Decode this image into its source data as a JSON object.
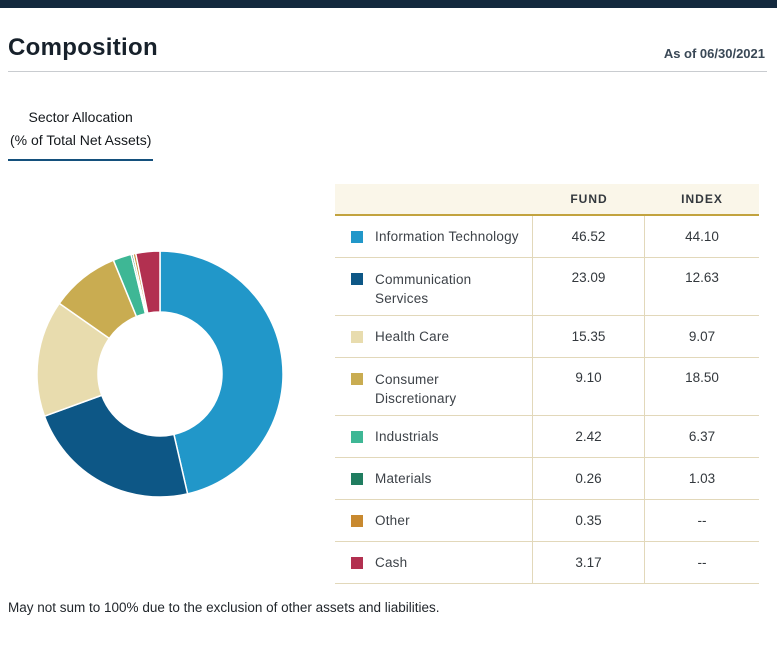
{
  "page": {
    "title": "Composition",
    "as_of": "As of 06/30/2021",
    "footnote": "May not sum to 100% due to the exclusion of other assets and liabilities."
  },
  "tab": {
    "line1": "Sector Allocation",
    "line2": "(% of Total Net Assets)"
  },
  "table": {
    "headers": [
      "FUND",
      "INDEX"
    ],
    "rows": [
      {
        "sector": "Information Technology",
        "lines": [
          "Information Technology"
        ],
        "fund": "46.52",
        "index": "44.10",
        "color": "#2197c9"
      },
      {
        "sector": "Communication Services",
        "lines": [
          "Communication",
          "Services"
        ],
        "fund": "23.09",
        "index": "12.63",
        "color": "#0d5786"
      },
      {
        "sector": "Health Care",
        "lines": [
          "Health Care"
        ],
        "fund": "15.35",
        "index": "9.07",
        "color": "#e8dcae"
      },
      {
        "sector": "Consumer Discretionary",
        "lines": [
          "Consumer",
          "Discretionary"
        ],
        "fund": "9.10",
        "index": "18.50",
        "color": "#c9ac51"
      },
      {
        "sector": "Industrials",
        "lines": [
          "Industrials"
        ],
        "fund": "2.42",
        "index": "6.37",
        "color": "#3eb795"
      },
      {
        "sector": "Materials",
        "lines": [
          "Materials"
        ],
        "fund": "0.26",
        "index": "1.03",
        "color": "#207d60"
      },
      {
        "sector": "Other",
        "lines": [
          "Other"
        ],
        "fund": "0.35",
        "index": "--",
        "color": "#c8892f"
      },
      {
        "sector": "Cash",
        "lines": [
          "Cash"
        ],
        "fund": "3.17",
        "index": "--",
        "color": "#b23050"
      }
    ]
  },
  "chart_data": {
    "type": "pie",
    "donut": true,
    "title": "Sector Allocation (% of Total Net Assets)",
    "categories": [
      "Information Technology",
      "Communication Services",
      "Health Care",
      "Consumer Discretionary",
      "Industrials",
      "Materials",
      "Other",
      "Cash"
    ],
    "series": [
      {
        "name": "FUND",
        "values": [
          46.52,
          23.09,
          15.35,
          9.1,
          2.42,
          0.26,
          0.35,
          3.17
        ]
      },
      {
        "name": "INDEX",
        "values": [
          44.1,
          12.63,
          9.07,
          18.5,
          6.37,
          1.03,
          null,
          null
        ]
      }
    ],
    "colors": [
      "#2197c9",
      "#0d5786",
      "#e8dcae",
      "#c9ac51",
      "#3eb795",
      "#207d60",
      "#c8892f",
      "#b23050"
    ],
    "start_angle_deg": -90,
    "direction": "clockwise",
    "legend_position": "table-right"
  },
  "theme": {
    "topbar": "#13293e",
    "tab_underline": "#14507c",
    "table_gold": "#c2a33f",
    "table_border": "#e2d8ba",
    "header_bg": "#faf6e9",
    "heading_text": "#17212b",
    "body_text": "#33383d"
  }
}
